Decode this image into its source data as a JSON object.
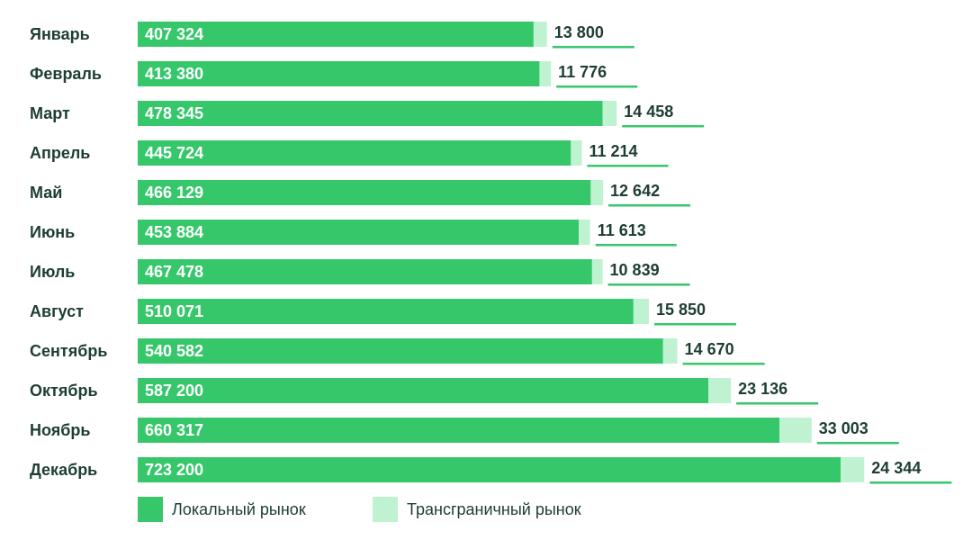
{
  "colors": {
    "local": "#36c76b",
    "crossborder": "#bff2d0",
    "text": "#1d3d35",
    "inner_text": "#ffffff",
    "underline": "#36c76b"
  },
  "chart_data": {
    "type": "bar",
    "orientation": "horizontal",
    "stacked": true,
    "categories": [
      "Январь",
      "Февраль",
      "Март",
      "Апрель",
      "Май",
      "Июнь",
      "Июль",
      "Август",
      "Сентябрь",
      "Октябрь",
      "Ноябрь",
      "Декабрь"
    ],
    "series": [
      {
        "name": "Локальный рынок",
        "color": "#36c76b",
        "values": [
          407324,
          413380,
          478345,
          445724,
          466129,
          453884,
          467478,
          510071,
          540582,
          587200,
          660317,
          723200
        ],
        "labels": [
          "407 324",
          "413 380",
          "478 345",
          "445 724",
          "466 129",
          "453 884",
          "467 478",
          "510 071",
          "540 582",
          "587 200",
          "660 317",
          "723 200"
        ]
      },
      {
        "name": "Трансграничный рынок",
        "color": "#bff2d0",
        "values": [
          13800,
          11776,
          14458,
          11214,
          12642,
          11613,
          10839,
          15850,
          14670,
          23136,
          33003,
          24344
        ],
        "labels": [
          "13 800",
          "11 776",
          "14 458",
          "11 214",
          "12 642",
          "11 613",
          "10 839",
          "15 850",
          "14 670",
          "23 136",
          "33 003",
          "24 344"
        ]
      }
    ],
    "legend": {
      "position": "bottom-left",
      "items": [
        "Локальный рынок",
        "Трансграничный рынок"
      ]
    }
  }
}
